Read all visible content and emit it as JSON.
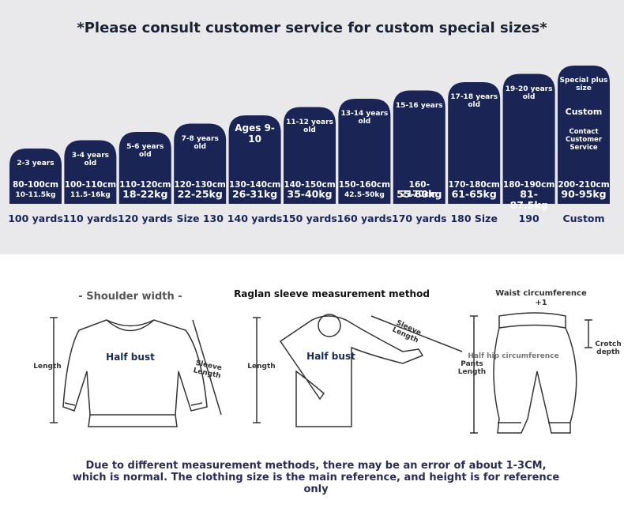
{
  "header": {
    "title": "*Please consult customer service for custom special sizes*"
  },
  "sizes": [
    {
      "age": "2-3 years",
      "height": "80-100cm",
      "weight": "10-11.5kg",
      "label": "100 yards"
    },
    {
      "age": "3-4 years old",
      "height": "100-110cm",
      "weight": "11.5-16kg",
      "label": "110 yards"
    },
    {
      "age": "5-6 years old",
      "height": "110-120cm",
      "weight": "18-22kg",
      "label": "120 yards"
    },
    {
      "age": "7-8 years old",
      "height": "120-130cm",
      "weight": "22-25kg",
      "label": "Size 130"
    },
    {
      "age": "Ages 9-10",
      "height": "130-140cm",
      "weight": "26-31kg",
      "label": "140 yards"
    },
    {
      "age": "11-12 years old",
      "height": "140-150cm",
      "weight": "35-40kg",
      "label": "150 yards"
    },
    {
      "age": "13-14 years old",
      "height": "150-160cm",
      "weight": "42.5-50kg",
      "label": "160 yards"
    },
    {
      "age": "15-16 years",
      "height": "160-2170cm",
      "weight": "55-60kg",
      "label": "170 yards"
    },
    {
      "age": "17-18 years old",
      "height": "170-180cm",
      "weight": "61-65kg",
      "label": "180 Size"
    },
    {
      "age": "19-20 years old",
      "height": "180-190cm",
      "weight": "81-87.5kg",
      "label": "190"
    },
    {
      "age": "Special plus size",
      "height": "200-210cm",
      "weight": "90-95kg",
      "label": "Custom",
      "extra": [
        "Custom",
        "Contact Customer Service"
      ]
    }
  ],
  "measurements": {
    "sweater": {
      "shoulder": "- Shoulder width -",
      "bust": "Half bust",
      "sleeve": "Sleeve Length",
      "length": "Length"
    },
    "raglan": {
      "title": "Raglan sleeve measurement method",
      "bust": "Half bust",
      "sleeve": "Sleeve Length",
      "length": "Length"
    },
    "pants": {
      "waist": "Waist circumference +1",
      "hip": "Half hip circumference",
      "crotch": "Crotch depth",
      "length": "Pants Length"
    }
  },
  "footer": {
    "note": "Due to different measurement methods, there may be an error of about 1-3CM, which is normal. The clothing size is the main reference, and height is for reference only"
  }
}
